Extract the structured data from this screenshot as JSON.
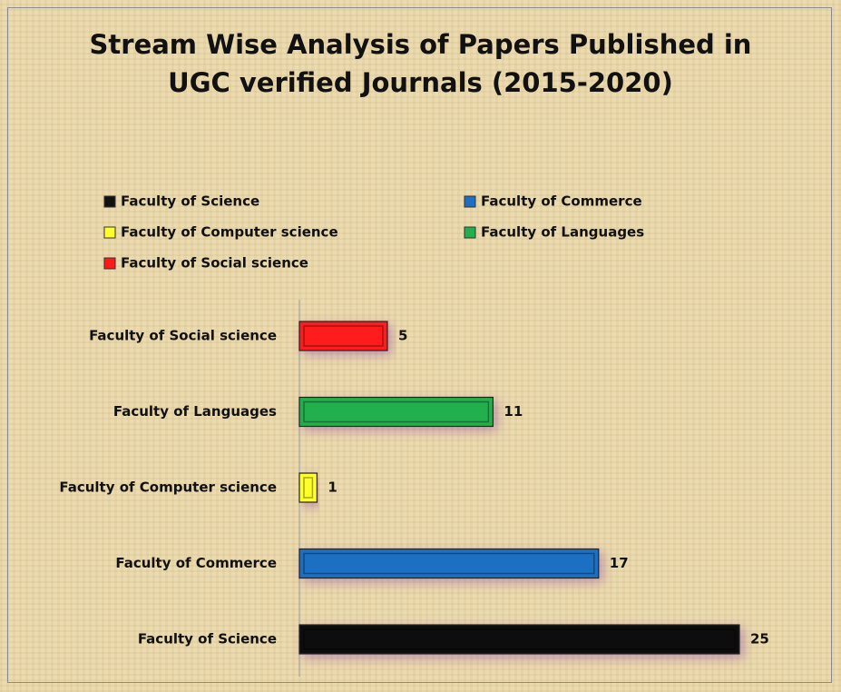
{
  "chart_data": {
    "type": "bar",
    "orientation": "horizontal",
    "title": "Stream Wise Analysis of Papers Published in UGC verified Journals (2015-2020)",
    "categories": [
      "Faculty of Science",
      "Faculty of Commerce",
      "Faculty of Computer science",
      "Faculty of Languages",
      "Faculty of Social science"
    ],
    "values": [
      25,
      17,
      1,
      11,
      5
    ],
    "colors": [
      "#111111",
      "#1e6fc2",
      "#ffff2a",
      "#22b04e",
      "#ff1a1a"
    ],
    "legend": "top"
  }
}
